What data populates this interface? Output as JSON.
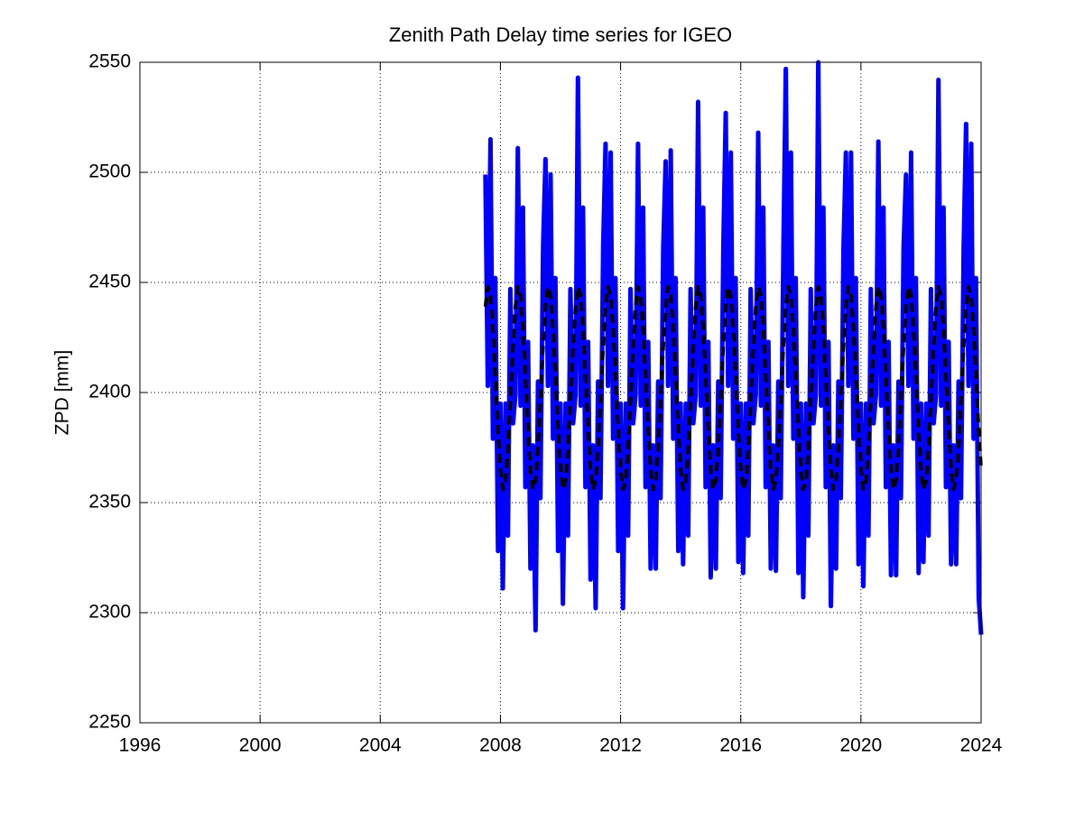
{
  "chart_data": {
    "type": "line",
    "title": "Zenith Path Delay time series for IGEO",
    "ylabel": "ZPD [mm]",
    "xlim": [
      1996,
      2024
    ],
    "xticks": [
      1996,
      2000,
      2004,
      2008,
      2012,
      2016,
      2020,
      2024
    ],
    "ylim": [
      2250,
      2550
    ],
    "yticks": [
      2250,
      2300,
      2350,
      2400,
      2450,
      2500,
      2550
    ],
    "grid": true,
    "x": [
      2007.5,
      2007.58,
      2007.67,
      2007.75,
      2007.83,
      2007.92,
      2008,
      2008.08,
      2008.17,
      2008.25,
      2008.33,
      2008.42,
      2008.5,
      2008.58,
      2008.67,
      2008.75,
      2008.83,
      2008.92,
      2009,
      2009.08,
      2009.17,
      2009.25,
      2009.33,
      2009.42,
      2009.5,
      2009.58,
      2009.67,
      2009.75,
      2009.83,
      2009.92,
      2010,
      2010.08,
      2010.17,
      2010.25,
      2010.33,
      2010.42,
      2010.5,
      2010.58,
      2010.67,
      2010.75,
      2010.83,
      2010.92,
      2011,
      2011.08,
      2011.17,
      2011.25,
      2011.33,
      2011.42,
      2011.5,
      2011.58,
      2011.67,
      2011.75,
      2011.83,
      2011.92,
      2012,
      2012.08,
      2012.17,
      2012.25,
      2012.33,
      2012.42,
      2012.5,
      2012.58,
      2012.67,
      2012.75,
      2012.83,
      2012.92,
      2013,
      2013.08,
      2013.17,
      2013.25,
      2013.33,
      2013.42,
      2013.5,
      2013.58,
      2013.67,
      2013.75,
      2013.83,
      2013.92,
      2014,
      2014.08,
      2014.17,
      2014.25,
      2014.33,
      2014.42,
      2014.5,
      2014.58,
      2014.67,
      2014.75,
      2014.83,
      2014.92,
      2015,
      2015.08,
      2015.17,
      2015.25,
      2015.33,
      2015.42,
      2015.5,
      2015.58,
      2015.67,
      2015.75,
      2015.83,
      2015.92,
      2016,
      2016.08,
      2016.17,
      2016.25,
      2016.33,
      2016.42,
      2016.5,
      2016.58,
      2016.67,
      2016.75,
      2016.83,
      2016.92,
      2017,
      2017.08,
      2017.17,
      2017.25,
      2017.33,
      2017.42,
      2017.5,
      2017.58,
      2017.67,
      2017.75,
      2017.83,
      2017.92,
      2018,
      2018.08,
      2018.17,
      2018.25,
      2018.33,
      2018.42,
      2018.5,
      2018.58,
      2018.67,
      2018.75,
      2018.83,
      2018.92,
      2019,
      2019.08,
      2019.17,
      2019.25,
      2019.33,
      2019.42,
      2019.5,
      2019.58,
      2019.67,
      2019.75,
      2019.83,
      2019.92,
      2020,
      2020.08,
      2020.17,
      2020.25,
      2020.33,
      2020.42,
      2020.5,
      2020.58,
      2020.67,
      2020.75,
      2020.83,
      2020.92,
      2021,
      2021.08,
      2021.17,
      2021.25,
      2021.33,
      2021.42,
      2021.5,
      2021.58,
      2021.67,
      2021.75,
      2021.83,
      2021.92,
      2022,
      2022.08,
      2022.17,
      2022.25,
      2022.33,
      2022.42,
      2022.5,
      2022.58,
      2022.67,
      2022.75,
      2022.83,
      2022.92,
      2023,
      2023.08,
      2023.17,
      2023.25,
      2023.33,
      2023.42,
      2023.5,
      2023.58,
      2023.67,
      2023.75,
      2023.83,
      2023.92,
      2024
    ],
    "series": [
      {
        "color": "#0000ff",
        "linestyle": "solid",
        "values": [
          2499,
          2403,
          2515,
          2379,
          2452,
          2328,
          2395,
          2311,
          2395,
          2335,
          2447,
          2386,
          2399,
          2511,
          2394,
          2484,
          2357,
          2423,
          2320,
          2376,
          2292,
          2405,
          2352,
          2466,
          2506,
          2403,
          2499,
          2379,
          2452,
          2328,
          2395,
          2304,
          2395,
          2335,
          2447,
          2386,
          2399,
          2543,
          2394,
          2484,
          2357,
          2423,
          2315,
          2376,
          2302,
          2405,
          2352,
          2466,
          2513,
          2403,
          2509,
          2379,
          2452,
          2328,
          2395,
          2302,
          2395,
          2335,
          2447,
          2386,
          2399,
          2513,
          2394,
          2484,
          2357,
          2423,
          2320,
          2376,
          2320,
          2405,
          2352,
          2466,
          2505,
          2403,
          2510,
          2379,
          2452,
          2328,
          2395,
          2322,
          2395,
          2335,
          2447,
          2386,
          2399,
          2532,
          2394,
          2484,
          2357,
          2423,
          2316,
          2376,
          2320,
          2405,
          2352,
          2466,
          2527,
          2403,
          2509,
          2379,
          2452,
          2323,
          2395,
          2318,
          2395,
          2335,
          2447,
          2386,
          2399,
          2518,
          2394,
          2484,
          2357,
          2423,
          2320,
          2376,
          2319,
          2405,
          2352,
          2466,
          2547,
          2403,
          2509,
          2379,
          2452,
          2318,
          2395,
          2307,
          2395,
          2335,
          2447,
          2386,
          2399,
          2550,
          2394,
          2484,
          2357,
          2423,
          2303,
          2376,
          2320,
          2405,
          2352,
          2466,
          2509,
          2403,
          2509,
          2379,
          2452,
          2322,
          2395,
          2312,
          2395,
          2335,
          2447,
          2386,
          2399,
          2514,
          2394,
          2484,
          2357,
          2423,
          2317,
          2376,
          2317,
          2405,
          2352,
          2466,
          2499,
          2403,
          2509,
          2379,
          2452,
          2318,
          2395,
          2323,
          2395,
          2335,
          2447,
          2386,
          2399,
          2542,
          2394,
          2484,
          2357,
          2423,
          2322,
          2376,
          2322,
          2405,
          2352,
          2466,
          2522,
          2403,
          2513,
          2379,
          2452,
          2307,
          2290
        ]
      },
      {
        "color": "#000000",
        "linestyle": "dashed",
        "values": [
          2439,
          2448,
          2444,
          2429,
          2407,
          2383,
          2365,
          2356,
          2360,
          2375,
          2397,
          2421,
          2439,
          2448,
          2444,
          2429,
          2407,
          2383,
          2365,
          2356,
          2360,
          2375,
          2397,
          2421,
          2439,
          2448,
          2444,
          2429,
          2407,
          2383,
          2365,
          2356,
          2360,
          2375,
          2397,
          2421,
          2439,
          2448,
          2444,
          2429,
          2407,
          2383,
          2365,
          2356,
          2360,
          2375,
          2397,
          2421,
          2439,
          2448,
          2444,
          2429,
          2407,
          2383,
          2365,
          2356,
          2360,
          2375,
          2397,
          2421,
          2439,
          2448,
          2444,
          2429,
          2407,
          2383,
          2365,
          2356,
          2360,
          2375,
          2397,
          2421,
          2439,
          2448,
          2444,
          2429,
          2407,
          2383,
          2365,
          2356,
          2360,
          2375,
          2397,
          2421,
          2439,
          2448,
          2444,
          2429,
          2407,
          2383,
          2365,
          2356,
          2360,
          2375,
          2397,
          2421,
          2439,
          2448,
          2444,
          2429,
          2407,
          2383,
          2365,
          2356,
          2360,
          2375,
          2397,
          2421,
          2439,
          2448,
          2444,
          2429,
          2407,
          2383,
          2365,
          2356,
          2360,
          2375,
          2397,
          2421,
          2439,
          2448,
          2444,
          2429,
          2407,
          2383,
          2365,
          2356,
          2360,
          2375,
          2397,
          2421,
          2439,
          2448,
          2444,
          2429,
          2407,
          2383,
          2365,
          2356,
          2360,
          2375,
          2397,
          2421,
          2439,
          2448,
          2444,
          2429,
          2407,
          2383,
          2365,
          2356,
          2360,
          2375,
          2397,
          2421,
          2439,
          2448,
          2444,
          2429,
          2407,
          2383,
          2365,
          2356,
          2360,
          2375,
          2397,
          2421,
          2439,
          2448,
          2444,
          2429,
          2407,
          2383,
          2365,
          2356,
          2360,
          2375,
          2397,
          2421,
          2439,
          2448,
          2444,
          2429,
          2407,
          2383,
          2365,
          2356,
          2360,
          2375,
          2397,
          2421,
          2439,
          2448,
          2444,
          2429,
          2407,
          2383,
          2365
        ]
      }
    ]
  }
}
